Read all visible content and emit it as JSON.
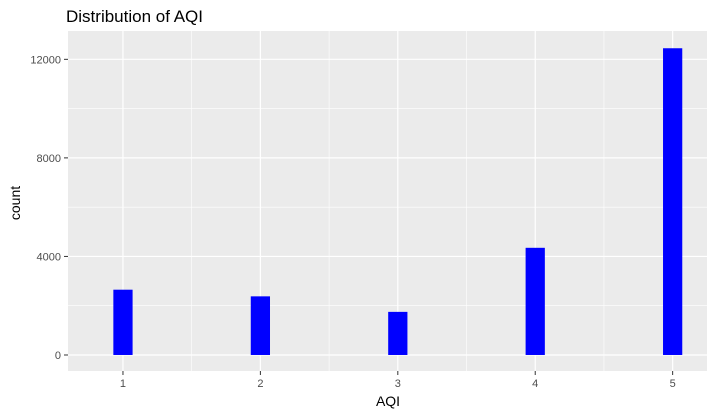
{
  "chart_data": {
    "type": "bar",
    "title": "Distribution of AQI",
    "xlabel": "AQI",
    "ylabel": "count",
    "categories": [
      1,
      2,
      3,
      4,
      5
    ],
    "values": [
      2650,
      2380,
      1750,
      4350,
      12450
    ],
    "xlim": [
      0.6,
      5.25
    ],
    "ylim": [
      -650,
      13150
    ],
    "x_ticks": [
      "1",
      "2",
      "3",
      "4",
      "5"
    ],
    "y_ticks": [
      "0",
      "4000",
      "8000",
      "12000"
    ],
    "grid": true,
    "bar_color": "#0000ff",
    "panel_color": "#ebebeb",
    "grid_color": "#ffffff"
  }
}
